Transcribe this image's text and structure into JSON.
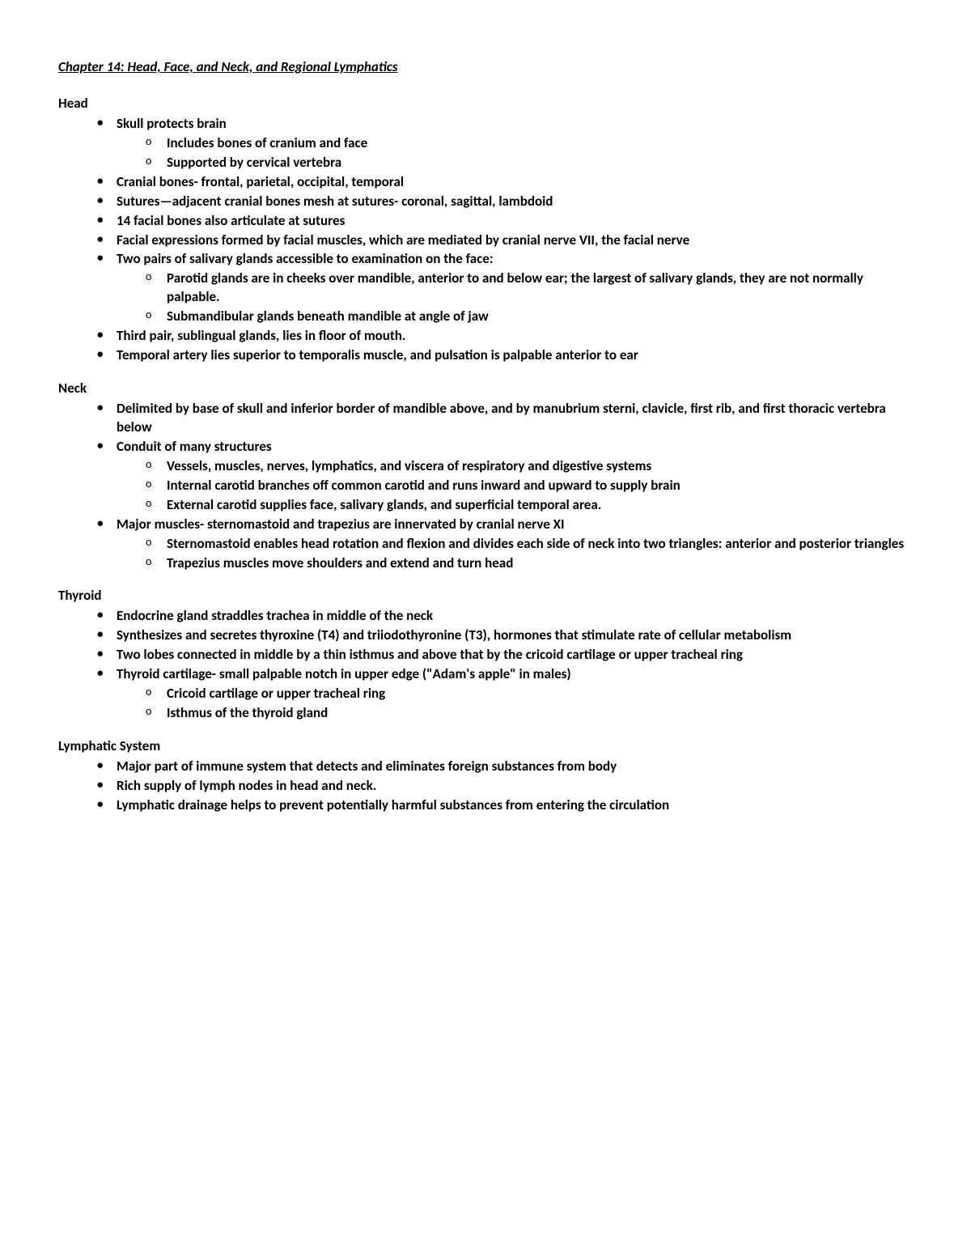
{
  "title": "Chapter 14: Head, Face, and Neck, and Regional Lymphatics",
  "sections": {
    "head": {
      "heading": "Head",
      "items": {
        "i0": "Skull protects brain",
        "i0_sub": {
          "s0": "Includes bones of cranium and face",
          "s1": "Supported by cervical vertebra"
        },
        "i1": "Cranial bones- frontal, parietal, occipital, temporal",
        "i2": "Sutures—adjacent cranial bones mesh at sutures- coronal, sagittal, lambdoid",
        "i3": "14 facial bones also articulate at sutures",
        "i4": "Facial expressions formed by facial muscles, which are mediated by cranial nerve VII, the facial nerve",
        "i5": "Two pairs of salivary glands accessible to examination on the face:",
        "i5_sub": {
          "s0": "Parotid glands are in cheeks over mandible, anterior to and below ear; the largest of salivary glands, they are not normally palpable.",
          "s1": "Submandibular glands beneath mandible at angle of jaw"
        },
        "i6": "Third pair, sublingual glands, lies in floor of mouth.",
        "i7": "Temporal artery lies superior to temporalis muscle, and pulsation is palpable anterior to ear"
      }
    },
    "neck": {
      "heading": "Neck",
      "items": {
        "i0": "Delimited by base of skull and inferior border of mandible above, and by manubrium sterni, clavicle, first rib, and first thoracic vertebra below",
        "i1": "Conduit of many structures",
        "i1_sub": {
          "s0": "Vessels, muscles, nerves, lymphatics, and viscera of respiratory and digestive systems",
          "s1": "Internal carotid branches off common carotid and runs inward and upward to supply brain",
          "s2": "External carotid supplies face, salivary glands, and superficial temporal area."
        },
        "i2": "Major muscles- sternomastoid and trapezius are innervated by cranial nerve XI",
        "i2_sub": {
          "s0": "Sternomastoid enables head rotation and flexion and divides each side of neck into two triangles: anterior and posterior triangles",
          "s1": "Trapezius muscles move shoulders and extend and turn head"
        }
      }
    },
    "thyroid": {
      "heading": "Thyroid",
      "items": {
        "i0": "Endocrine gland straddles trachea in middle of the neck",
        "i1": "Synthesizes and secretes thyroxine (T4) and triiodothyronine (T3), hormones that stimulate rate of cellular metabolism",
        "i2": "Two lobes connected in middle by a thin isthmus and above that by the cricoid cartilage or upper tracheal ring",
        "i3": "Thyroid cartilage- small palpable notch in upper edge (\"Adam's apple\" in males)",
        "i3_sub": {
          "s0": "Cricoid cartilage or upper tracheal ring",
          "s1": "Isthmus of the thyroid gland"
        }
      }
    },
    "lymphatic": {
      "heading": "Lymphatic System",
      "items": {
        "i0": "Major part of immune system that detects and eliminates foreign substances from body",
        "i1": "Rich supply of lymph nodes in head and neck.",
        "i2": "Lymphatic drainage helps to prevent potentially harmful substances from entering the circulation"
      }
    }
  }
}
